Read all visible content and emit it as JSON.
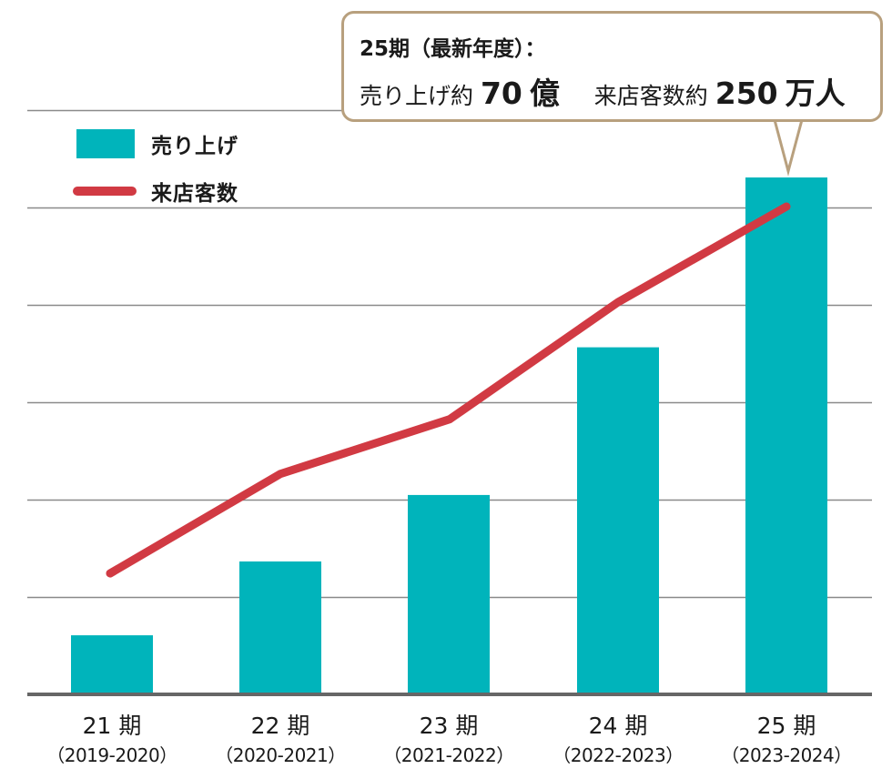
{
  "colors": {
    "bar": "#00b4bb",
    "line": "#d13a43",
    "grid": "#8a8a8a",
    "baseline": "#666666",
    "callout_border": "#b8a07e"
  },
  "legend": {
    "sales_label": "売り上げ",
    "customers_label": "来店客数"
  },
  "callout": {
    "title": "25期（最新年度）：",
    "sales_prefix": "売り上げ約",
    "sales_value": "70",
    "sales_unit": "億",
    "customers_prefix": "来店客数約",
    "customers_value": "250",
    "customers_unit": "万人"
  },
  "x_axis": [
    {
      "period": "21 期",
      "years": "（2019-2020）"
    },
    {
      "period": "22 期",
      "years": "（2020-2021）"
    },
    {
      "period": "23 期",
      "years": "（2021-2022）"
    },
    {
      "period": "24 期",
      "years": "（2022-2023）"
    },
    {
      "period": "25 期",
      "years": "（2023-2024）"
    }
  ],
  "chart_data": {
    "type": "bar",
    "title": "",
    "categories": [
      "21期 (2019-2020)",
      "22期 (2020-2021)",
      "23期 (2021-2022)",
      "24期 (2022-2023)",
      "25期 (2023-2024)"
    ],
    "series": [
      {
        "name": "売り上げ",
        "type": "bar",
        "unit": "億円",
        "values": [
          8,
          18,
          27,
          47,
          70
        ]
      },
      {
        "name": "来店客数",
        "type": "line",
        "unit": "万人",
        "values": [
          62,
          113,
          141,
          201,
          250
        ]
      }
    ],
    "annotations": [
      "25期（最新年度）：売り上げ約 70 億　来店客数約 250 万人"
    ],
    "xlabel": "",
    "ylabel": "",
    "y_ticks_labeled": false,
    "grid": true,
    "gridline_count": 6,
    "legend_position": "top-left",
    "note": "Values estimated from pixel heights, anchored to the 25期 annotation (70億 / 250万人); the y-axis has no tick labels."
  }
}
